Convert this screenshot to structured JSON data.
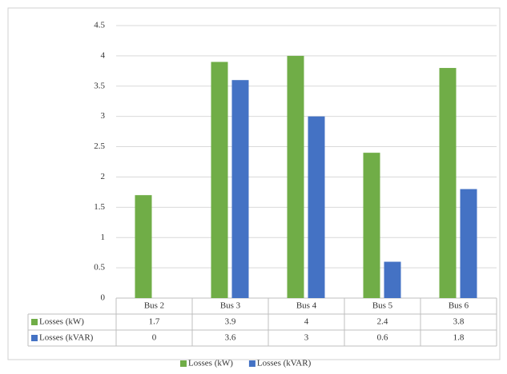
{
  "chart_data": {
    "type": "bar",
    "categories": [
      "Bus 2",
      "Bus 3",
      "Bus 4",
      "Bus 5",
      "Bus 6"
    ],
    "series": [
      {
        "name": "Losses (kW)",
        "color": "#70ad47",
        "values": [
          1.7,
          3.9,
          4,
          2.4,
          3.8
        ]
      },
      {
        "name": "Losses (kVAR)",
        "color": "#4472c4",
        "values": [
          0,
          3.6,
          3,
          0.6,
          1.8
        ]
      }
    ],
    "ylim": [
      0,
      4.5
    ],
    "yticks": [
      0,
      0.5,
      1,
      1.5,
      2,
      2.5,
      3,
      3.5,
      4,
      4.5
    ],
    "grid": true
  }
}
